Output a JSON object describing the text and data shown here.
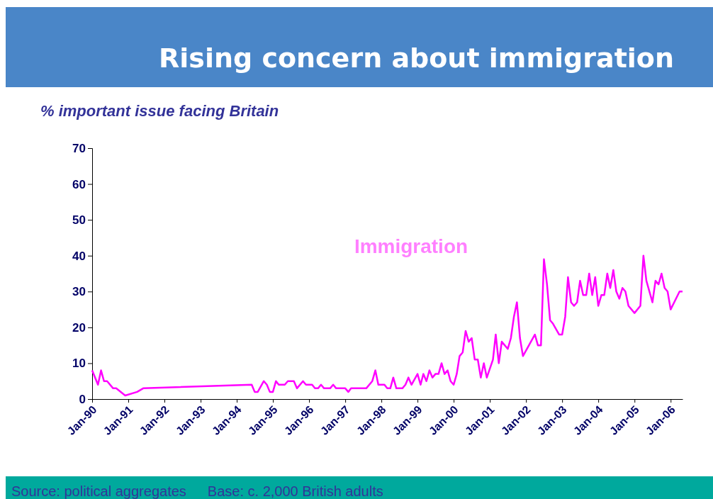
{
  "chart_data": {
    "type": "line",
    "title": "Rising concern about immigration",
    "ylabel": "% important issue facing Britain",
    "xlim": [
      "1990-01",
      "2006-05"
    ],
    "xticks": [
      {
        "value": "1990-01",
        "label": "Jan-90"
      },
      {
        "value": "1991-01",
        "label": "Jan-91"
      },
      {
        "value": "1992-01",
        "label": "Jan-92"
      },
      {
        "value": "1993-01",
        "label": "Jan-93"
      },
      {
        "value": "1994-01",
        "label": "Jan-94"
      },
      {
        "value": "1995-01",
        "label": "Jan-95"
      },
      {
        "value": "1996-01",
        "label": "Jan-96"
      },
      {
        "value": "1997-01",
        "label": "Jan-97"
      },
      {
        "value": "1998-01",
        "label": "Jan-98"
      },
      {
        "value": "1999-01",
        "label": "Jan-99"
      },
      {
        "value": "2000-01",
        "label": "Jan-00"
      },
      {
        "value": "2001-01",
        "label": "Jan-01"
      },
      {
        "value": "2002-01",
        "label": "Jan-02"
      },
      {
        "value": "2003-01",
        "label": "Jan-03"
      },
      {
        "value": "2004-01",
        "label": "Jan-04"
      },
      {
        "value": "2005-01",
        "label": "Jan-05"
      },
      {
        "value": "2006-01",
        "label": "Jan-06"
      }
    ],
    "ylim": [
      0,
      70
    ],
    "yticks": [
      0,
      10,
      20,
      30,
      40,
      50,
      60,
      70
    ],
    "grid": false,
    "legend": false,
    "marker": "none",
    "line_style": "solid",
    "annotations": [
      "Source: political aggregates",
      "Base: c. 2,000 British adults"
    ],
    "series": [
      {
        "name": "Immigration",
        "color": "#ff00ff",
        "x": [
          "1990-01",
          "1990-03",
          "1990-04",
          "1990-05",
          "1990-06",
          "1990-08",
          "1990-09",
          "1990-12",
          "1991-04",
          "1991-06",
          "1994-06",
          "1994-07",
          "1994-08",
          "1994-10",
          "1994-11",
          "1994-12",
          "1995-01",
          "1995-02",
          "1995-03",
          "1995-05",
          "1995-06",
          "1995-08",
          "1995-09",
          "1995-11",
          "1995-12",
          "1996-02",
          "1996-03",
          "1996-04",
          "1996-05",
          "1996-06",
          "1996-08",
          "1996-09",
          "1996-10",
          "1997-01",
          "1997-02",
          "1997-03",
          "1997-08",
          "1997-10",
          "1997-11",
          "1997-12",
          "1998-02",
          "1998-03",
          "1998-04",
          "1998-05",
          "1998-06",
          "1998-08",
          "1998-09",
          "1998-10",
          "1998-11",
          "1999-01",
          "1999-02",
          "1999-03",
          "1999-04",
          "1999-05",
          "1999-06",
          "1999-07",
          "1999-08",
          "1999-09",
          "1999-10",
          "1999-11",
          "1999-12",
          "2000-01",
          "2000-02",
          "2000-03",
          "2000-04",
          "2000-05",
          "2000-06",
          "2000-07",
          "2000-08",
          "2000-09",
          "2000-10",
          "2000-11",
          "2000-12",
          "2001-02",
          "2001-03",
          "2001-04",
          "2001-05",
          "2001-07",
          "2001-08",
          "2001-09",
          "2001-10",
          "2001-11",
          "2001-12",
          "2002-04",
          "2002-05",
          "2002-06",
          "2002-07",
          "2002-08",
          "2002-09",
          "2002-10",
          "2002-12",
          "2003-01",
          "2003-02",
          "2003-03",
          "2003-04",
          "2003-05",
          "2003-06",
          "2003-07",
          "2003-08",
          "2003-09",
          "2003-10",
          "2003-11",
          "2003-12",
          "2004-01",
          "2004-02",
          "2004-03",
          "2004-04",
          "2004-05",
          "2004-06",
          "2004-07",
          "2004-08",
          "2004-09",
          "2004-10",
          "2004-11",
          "2005-01",
          "2005-03",
          "2005-04",
          "2005-05",
          "2005-07",
          "2005-08",
          "2005-09",
          "2005-10",
          "2005-11",
          "2005-12",
          "2006-01",
          "2006-04",
          "2006-05"
        ],
        "values": [
          8,
          4,
          8,
          5,
          5,
          3,
          3,
          1,
          2,
          3,
          4,
          2,
          2,
          5,
          4,
          2,
          2,
          5,
          4,
          4,
          5,
          5,
          3,
          5,
          4,
          4,
          3,
          3,
          4,
          3,
          3,
          4,
          3,
          3,
          2,
          3,
          3,
          5,
          8,
          4,
          4,
          3,
          3,
          6,
          3,
          3,
          4,
          6,
          4,
          7,
          4,
          7,
          5,
          8,
          6,
          7,
          7,
          10,
          7,
          8,
          5,
          4,
          7,
          12,
          13,
          19,
          16,
          17,
          11,
          11,
          6,
          10,
          6,
          11,
          18,
          10,
          16,
          14,
          17,
          23,
          27,
          17,
          12,
          18,
          15,
          15,
          39,
          32,
          22,
          21,
          18,
          18,
          23,
          34,
          27,
          26,
          27,
          33,
          29,
          29,
          35,
          29,
          34,
          26,
          29,
          29,
          35,
          31,
          36,
          30,
          28,
          31,
          30,
          26,
          24,
          26,
          40,
          33,
          27,
          33,
          32,
          35,
          31,
          30,
          25,
          30,
          30
        ]
      }
    ]
  }
}
